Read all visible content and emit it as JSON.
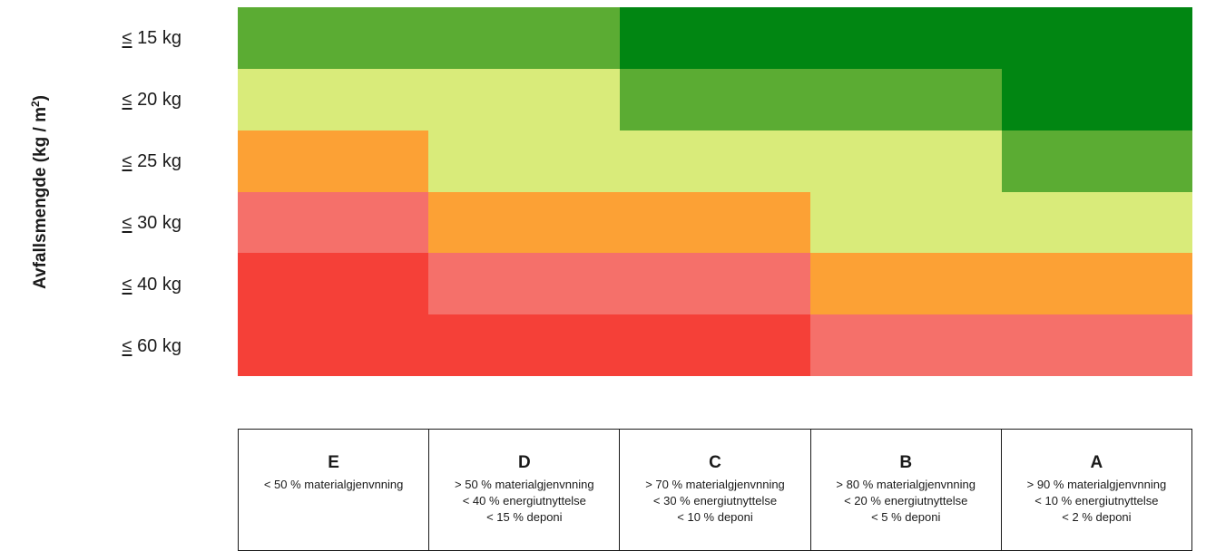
{
  "chart_data": {
    "type": "heatmap",
    "ylabel_main": "Avfallsmengde (kg / m",
    "ylabel_sup": "2",
    "ylabel_tail": ")",
    "rows": [
      {
        "sym": "≤",
        "value": "15",
        "unit": "kg"
      },
      {
        "sym": "≤",
        "value": "20",
        "unit": "kg"
      },
      {
        "sym": "≤",
        "value": "25",
        "unit": "kg"
      },
      {
        "sym": "≤",
        "value": "30",
        "unit": "kg"
      },
      {
        "sym": "≤",
        "value": "40",
        "unit": "kg"
      },
      {
        "sym": "≤",
        "value": "60",
        "unit": "kg"
      }
    ],
    "columns": [
      {
        "letter": "E",
        "lines": [
          "< 50 % materialgjenvnning"
        ]
      },
      {
        "letter": "D",
        "lines": [
          "> 50 % materialgjenvnning",
          "< 40 % energiutnyttelse",
          "< 15 % deponi"
        ]
      },
      {
        "letter": "C",
        "lines": [
          "> 70 % materialgjenvnning",
          "< 30 % energiutnyttelse",
          "< 10 % deponi"
        ]
      },
      {
        "letter": "B",
        "lines": [
          "> 80 % materialgjenvnning",
          "< 20 % energiutnyttelse",
          "< 5 % deponi"
        ]
      },
      {
        "letter": "A",
        "lines": [
          "> 90 % materialgjenvnning",
          "< 10 % energiutnyttelse",
          "< 2 % deponi"
        ]
      }
    ],
    "level_colors": [
      "#f54038",
      "#f5706a",
      "#fca135",
      "#d9eb7a",
      "#5bac33",
      "#018612"
    ],
    "grid_levels": [
      [
        4,
        4,
        5,
        5,
        5
      ],
      [
        3,
        3,
        4,
        4,
        5
      ],
      [
        2,
        3,
        3,
        3,
        4
      ],
      [
        1,
        2,
        2,
        3,
        3
      ],
      [
        0,
        1,
        1,
        2,
        2
      ],
      [
        0,
        0,
        0,
        1,
        1
      ]
    ]
  }
}
